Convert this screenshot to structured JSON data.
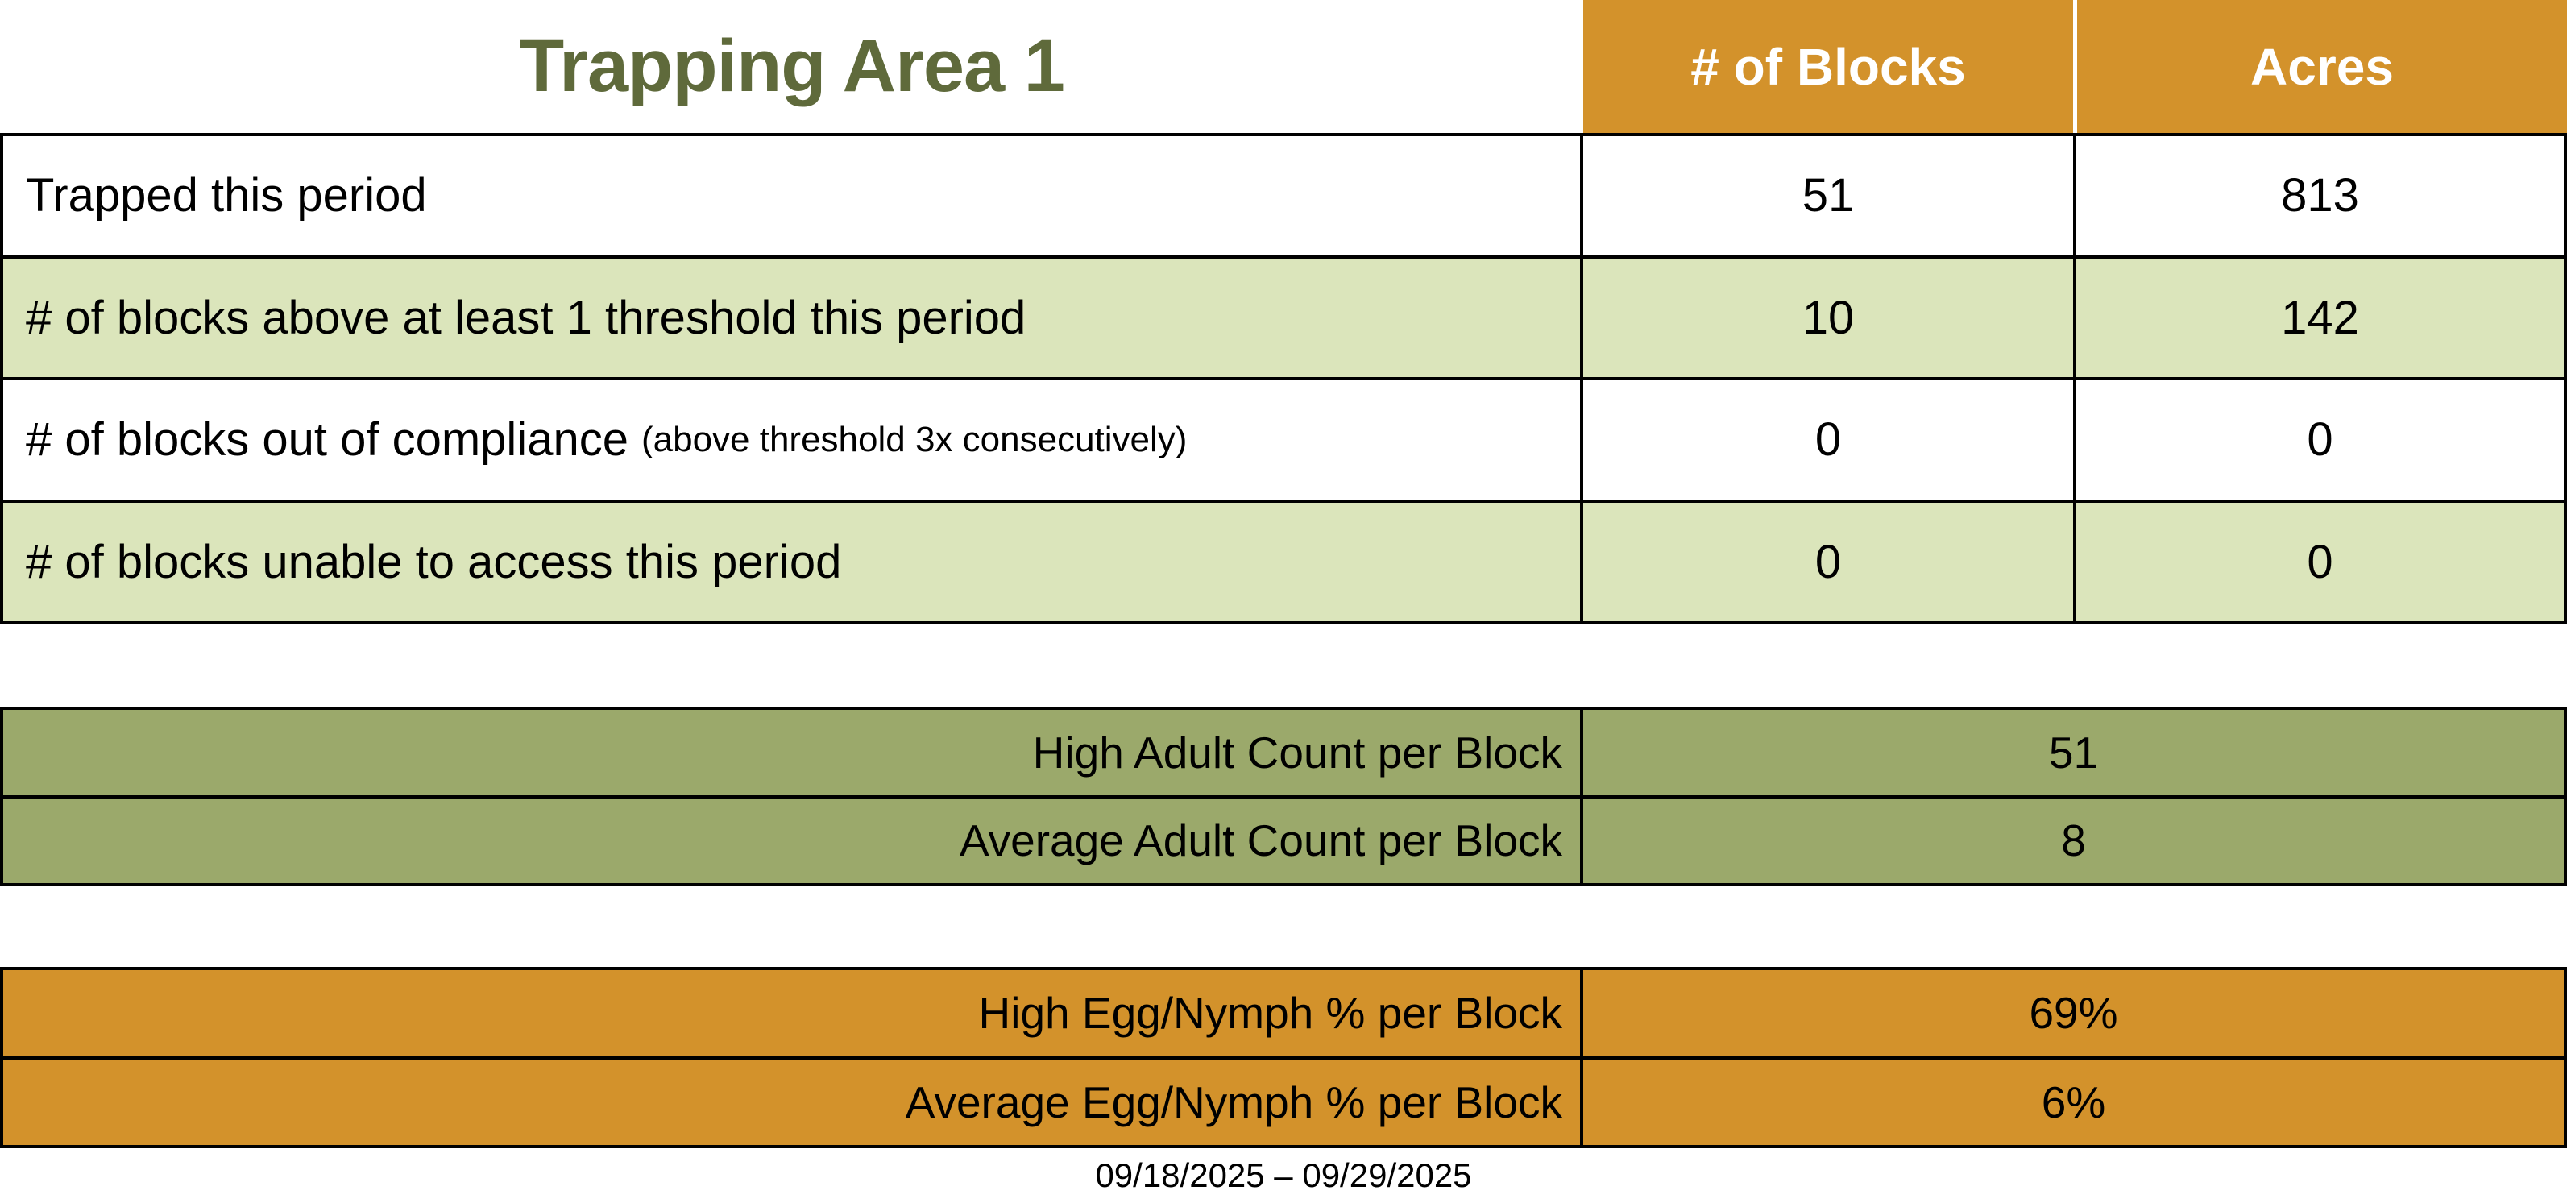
{
  "title": "Trapping Area 1",
  "header": {
    "col_blocks": "# of Blocks",
    "col_acres": "Acres"
  },
  "main_table": {
    "rows": [
      {
        "label": "Trapped this period",
        "blocks": "51",
        "acres": "813"
      },
      {
        "label": "# of blocks above at least 1 threshold this period",
        "blocks": "10",
        "acres": "142"
      },
      {
        "label": "# of blocks out of compliance",
        "note": "(above threshold 3x consecutively)",
        "blocks": "0",
        "acres": "0"
      },
      {
        "label": "# of blocks unable to access this period",
        "blocks": "0",
        "acres": "0"
      }
    ]
  },
  "adult_counts": {
    "rows": [
      {
        "label": "High Adult Count per Block",
        "value": "51"
      },
      {
        "label": "Average Adult Count per Block",
        "value": "8"
      }
    ]
  },
  "egg_nymph": {
    "rows": [
      {
        "label": "High Egg/Nymph % per Block",
        "value": "69%"
      },
      {
        "label": "Average Egg/Nymph % per Block",
        "value": "6%"
      }
    ]
  },
  "footer": {
    "date_range": "09/18/2025 – 09/29/2025"
  },
  "colors": {
    "header_orange": "#D3922B",
    "row_green": "#DBE5BB",
    "band_olive": "#9BA96B",
    "band_orange": "#D3922B",
    "title_green": "#5F6A3B"
  }
}
